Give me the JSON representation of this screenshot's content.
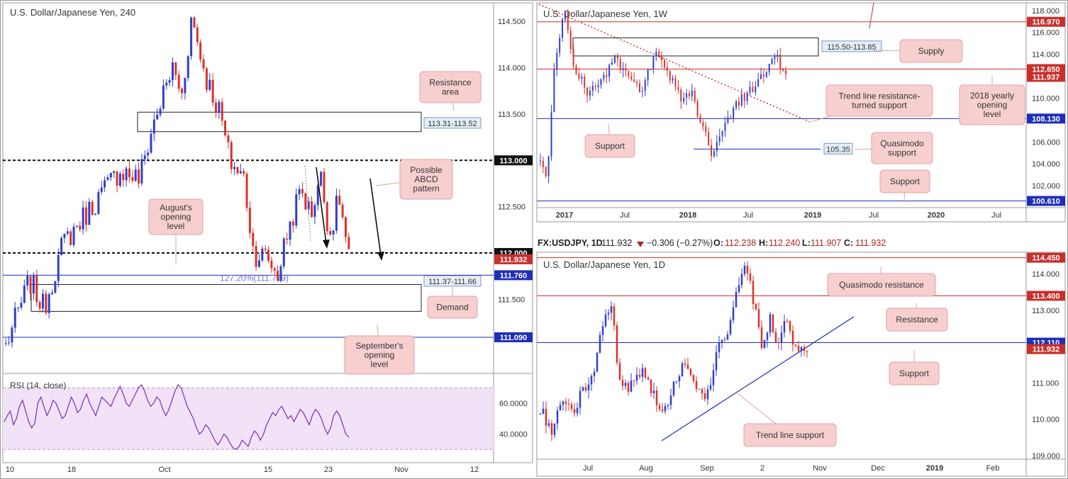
{
  "colors": {
    "up": "#2f3fd0",
    "down": "#d9332b",
    "hline_blue": "#1f2fb5",
    "hline_red": "#c9302c",
    "callout_fill": "#f7cfcf",
    "callout_stroke": "#e3a0a0",
    "rsi_line": "#7b2fb5",
    "rsi_band": "#f1e2f8",
    "trend_red": "#d9332b"
  },
  "chart_data": [
    {
      "id": "h4",
      "type": "candlestick",
      "title": "U.S. Dollar/Japanese Yen, 240",
      "ylim": [
        110.7,
        114.7
      ],
      "x_ticks": [
        "10",
        "18",
        "Oct",
        "15",
        "23",
        "Nov",
        "12"
      ],
      "y_ticks": [
        {
          "label": "114.500",
          "value": 114.5
        },
        {
          "label": "114.000",
          "value": 114.0
        },
        {
          "label": "113.500",
          "value": 113.5
        },
        {
          "label": "112.500",
          "value": 112.5
        },
        {
          "label": "111.500",
          "value": 111.5
        }
      ],
      "price_labels": [
        {
          "label": "113.000",
          "value": 113.0,
          "style": "dark"
        },
        {
          "label": "112.000",
          "value": 112.0,
          "style": "dark"
        },
        {
          "label": "111.932",
          "value": 111.932,
          "style": "red"
        },
        {
          "label": "111.760",
          "value": 111.76,
          "style": "blue"
        },
        {
          "label": "111.090",
          "value": 111.09,
          "style": "blue"
        }
      ],
      "zones": [
        {
          "name": "resistance-area",
          "label": "113.31-113.52",
          "low": 113.31,
          "high": 113.52
        },
        {
          "name": "demand-zone",
          "label": "111.37-111.66",
          "low": 111.37,
          "high": 111.66
        }
      ],
      "fib_label": "127.20%(111.719)",
      "annotations": [
        "Resistance area",
        "Possible ABCD pattern",
        "August's opening level",
        "Demand",
        "September's opening level"
      ],
      "rsi": {
        "label": "RSI (14, close)",
        "ylim": [
          26,
          78
        ],
        "band": [
          30,
          70
        ],
        "y_ticks": [
          {
            "label": "60.0000",
            "value": 60
          },
          {
            "label": "40.0000",
            "value": 40
          }
        ],
        "values": [
          48,
          52,
          55,
          46,
          50,
          58,
          62,
          55,
          48,
          44,
          47,
          60,
          64,
          58,
          52,
          56,
          62,
          60,
          55,
          50,
          52,
          58,
          64,
          60,
          54,
          56,
          62,
          66,
          60,
          56,
          52,
          58,
          64,
          62,
          60,
          58,
          63,
          67,
          71,
          66,
          60,
          58,
          62,
          66,
          70,
          72,
          68,
          62,
          58,
          60,
          64,
          62,
          56,
          52,
          56,
          62,
          68,
          72,
          70,
          64,
          58,
          54,
          50,
          44,
          40,
          42,
          46,
          44,
          40,
          36,
          33,
          36,
          40,
          38,
          34,
          31,
          30,
          32,
          36,
          34,
          32,
          38,
          42,
          40,
          36,
          40,
          46,
          50,
          54,
          52,
          56,
          58,
          54,
          50,
          52,
          48,
          52,
          56,
          54,
          50,
          46,
          52,
          56,
          54,
          50,
          44,
          40,
          44,
          52,
          55,
          52,
          46,
          40,
          38
        ]
      }
    },
    {
      "id": "w1",
      "type": "candlestick",
      "title": "U.S. Dollar/Japanese Yen, 1W",
      "ylim": [
        100.0,
        118.7
      ],
      "x_ticks": [
        "2017",
        "Jul",
        "2018",
        "Jul",
        "2019",
        "Jul",
        "2020",
        "Jul"
      ],
      "y_ticks": [
        {
          "label": "118.000",
          "value": 118
        },
        {
          "label": "116.000",
          "value": 116
        },
        {
          "label": "114.000",
          "value": 114
        },
        {
          "label": "110.000",
          "value": 110
        },
        {
          "label": "106.000",
          "value": 106
        },
        {
          "label": "104.000",
          "value": 104
        },
        {
          "label": "102.000",
          "value": 102
        }
      ],
      "price_labels": [
        {
          "label": "116.970",
          "value": 116.97,
          "style": "red"
        },
        {
          "label": "112.650",
          "value": 112.65,
          "style": "red"
        },
        {
          "label": "111.937",
          "value": 111.937,
          "style": "red"
        },
        {
          "label": "108.130",
          "value": 108.13,
          "style": "blue"
        },
        {
          "label": "100.610",
          "value": 100.61,
          "style": "blue"
        }
      ],
      "zones": [
        {
          "name": "supply-zone",
          "label": "115.50-113.85",
          "low": 113.85,
          "high": 115.5
        }
      ],
      "quasimodo_label": "105.35",
      "annotations": [
        "Supply",
        "Trend line resistance-turned support",
        "2018 yearly opening level",
        "Support",
        "Quasimodo support",
        "Support"
      ]
    },
    {
      "id": "d1",
      "type": "candlestick",
      "title": "U.S. Dollar/Japanese Yen, 1D",
      "ylim": [
        108.9,
        114.6
      ],
      "x_ticks": [
        "Jul",
        "Aug",
        "Sep",
        "2",
        "Nov",
        "Dec",
        "2019",
        "Feb"
      ],
      "y_ticks": [
        {
          "label": "114.000",
          "value": 114
        },
        {
          "label": "113.000",
          "value": 113
        },
        {
          "label": "111.000",
          "value": 111
        },
        {
          "label": "110.000",
          "value": 110
        },
        {
          "label": "109.000",
          "value": 109
        }
      ],
      "price_labels": [
        {
          "label": "114.450",
          "value": 114.45,
          "style": "red"
        },
        {
          "label": "113.400",
          "value": 113.4,
          "style": "red"
        },
        {
          "label": "112.110",
          "value": 112.11,
          "style": "blue"
        },
        {
          "label": "111.932",
          "value": 111.932,
          "style": "red"
        }
      ],
      "annotations": [
        "Quasimodo resistance",
        "Resistance",
        "Support",
        "Trend line support"
      ]
    }
  ],
  "ticker": {
    "symbol": "FX:USDJPY, 1D",
    "last": "111.932",
    "change": "−0.306 (−0.27%)",
    "o_label": "O:",
    "o": "112.238",
    "h_label": "H:",
    "h": "112.240",
    "l_label": "L:",
    "l": "111.907",
    "c_label": "C:",
    "c": "111.932"
  }
}
